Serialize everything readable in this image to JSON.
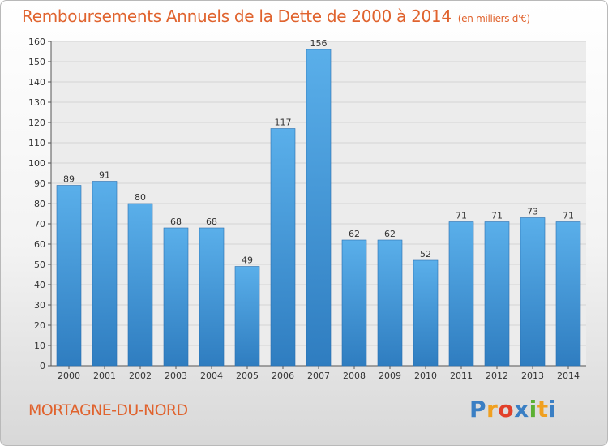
{
  "chart_data": {
    "type": "bar",
    "title": "Remboursements Annuels de la Dette de 2000 à 2014",
    "subtitle": "(en milliers d'€)",
    "categories": [
      "2000",
      "2001",
      "2002",
      "2003",
      "2004",
      "2005",
      "2006",
      "2007",
      "2008",
      "2009",
      "2010",
      "2011",
      "2012",
      "2013",
      "2014"
    ],
    "values": [
      89,
      91,
      80,
      68,
      68,
      49,
      117,
      156,
      62,
      62,
      52,
      71,
      71,
      73,
      71
    ],
    "ylim": [
      0,
      160
    ],
    "yticks": [
      0,
      10,
      20,
      30,
      40,
      50,
      60,
      70,
      80,
      90,
      100,
      110,
      120,
      130,
      140,
      150,
      160
    ],
    "grid": true,
    "data_labels": true,
    "bar_color": "#4a9ee0"
  },
  "footer": {
    "location": "MORTAGNE-DU-NORD",
    "logo_text": "Proxiti",
    "logo_letters": [
      "P",
      "r",
      "o",
      "x",
      "i",
      "t",
      "i"
    ],
    "logo_colors": [
      "#3a7fc4",
      "#f0a020",
      "#e2402a",
      "#3a7fc4",
      "#5bb033",
      "#f0a020",
      "#3a7fc4"
    ]
  }
}
